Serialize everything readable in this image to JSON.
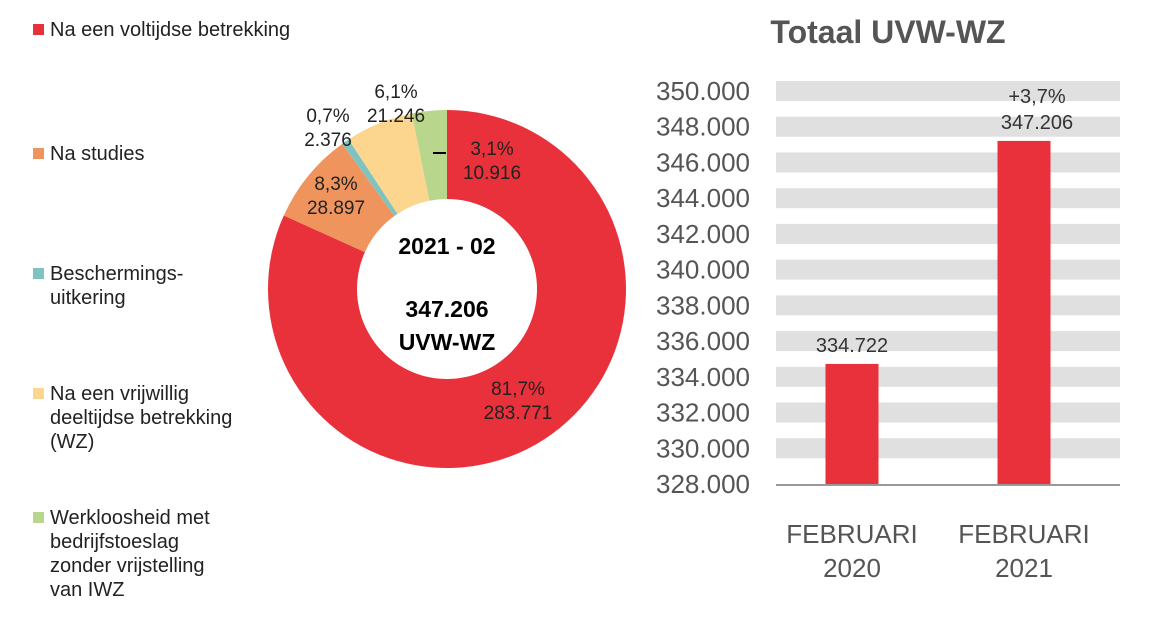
{
  "chart_data": [
    {
      "type": "pie",
      "variant": "donut",
      "center_label": {
        "period": "2021 - 02",
        "total": "347.206",
        "unit": "UVW-WZ"
      },
      "legend_placement": "left",
      "slices": [
        {
          "name": "Na een voltijdse betrekking",
          "percent_label": "81,7%",
          "value_label": "283.771",
          "value": 283771,
          "percent": 81.7,
          "color": "#e8313a"
        },
        {
          "name": "Na studies",
          "percent_label": "8,3%",
          "value_label": "28.897",
          "value": 28897,
          "percent": 8.3,
          "color": "#f0945e"
        },
        {
          "name": "Beschermings-\nuitkering",
          "percent_label": "0,7%",
          "value_label": "2.376",
          "value": 2376,
          "percent": 0.7,
          "color": "#7fc3c0"
        },
        {
          "name": "Na een vrijwillig\ndeeltijdse betrekking\n(WZ)",
          "percent_label": "6,1%",
          "value_label": "21.246",
          "value": 21246,
          "percent": 6.1,
          "color": "#fcd68f"
        },
        {
          "name": "Werkloosheid met\nbedrijfstoeslag\nzonder vrijstelling\nvan IWZ",
          "percent_label": "3,1%",
          "value_label": "10.916",
          "value": 10916,
          "percent": 3.1,
          "color": "#b8d68c"
        }
      ]
    },
    {
      "type": "bar",
      "title": "Totaal UVW-WZ",
      "categories": [
        "FEBRUARI\n2020",
        "FEBRUARI\n2021"
      ],
      "values": [
        334722,
        347206
      ],
      "data_labels": [
        "334.722",
        "347.206"
      ],
      "annotations": [
        "",
        "+3,7%"
      ],
      "ylim": [
        328000,
        350000
      ],
      "yticks": [
        "328.000",
        "330.000",
        "332.000",
        "334.000",
        "336.000",
        "338.000",
        "340.000",
        "342.000",
        "344.000",
        "346.000",
        "348.000",
        "350.000"
      ],
      "grid": "banded",
      "color": "#e8313a"
    }
  ]
}
